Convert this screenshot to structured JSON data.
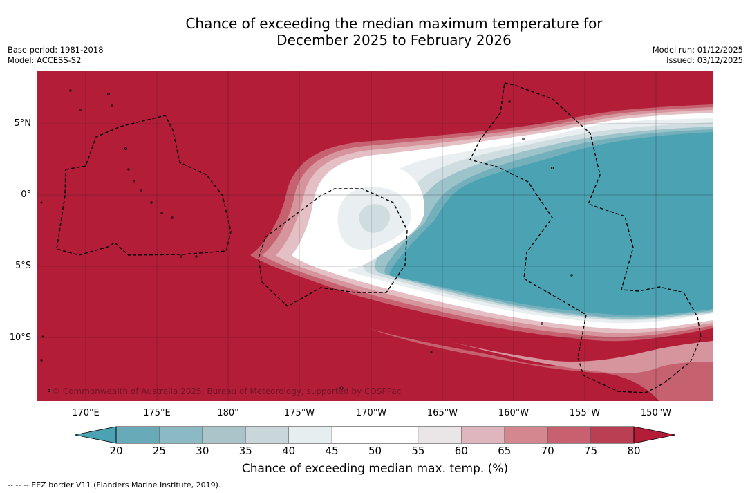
{
  "title": {
    "line1": "Chance of exceeding the median maximum temperature for",
    "line2": "December 2025 to February 2026"
  },
  "meta_left": {
    "base_period": "Base period: 1981-2018",
    "model": "Model: ACCESS-S2"
  },
  "meta_right": {
    "model_run": "Model run: 01/12/2025",
    "issued": "Issued: 03/12/2025"
  },
  "copyright": "© Commonwealth of Australia 2025, Bureau of Meteorology, supported by COSPPac",
  "longitude_labels": [
    "170°E",
    "175°E",
    "180°",
    "175°W",
    "170°W",
    "165°W",
    "160°W",
    "155°W",
    "150°W"
  ],
  "latitude_labels": [
    "5°N",
    "0°",
    "5°S",
    "10°S"
  ],
  "colorbar": {
    "ticks": [
      "20",
      "25",
      "30",
      "35",
      "40",
      "45",
      "50",
      "55",
      "60",
      "65",
      "70",
      "75",
      "80"
    ],
    "colors": [
      "#69aab8",
      "#8bb9c4",
      "#a9c5ca",
      "#c9d6da",
      "#e7eef0",
      "#ffffff",
      "#ffffff",
      "#eae6e7",
      "#dfb6bd",
      "#d4878f",
      "#c76170",
      "#bb3f53"
    ],
    "low_color": "#4aa2b3",
    "high_color": "#b31d38",
    "label": "Chance of exceeding median max. temp. (%)"
  },
  "legend_footer": "--  --  -- EEZ border V11 (Flanders Marine Institute, 2019).",
  "map_colors": {
    "warm": "#b31d38",
    "cool": "#4aa2b3",
    "pink1": "#c66170",
    "pink2": "#d6959d",
    "pink3": "#e4c0c5",
    "grey1": "#e9eef0",
    "grey2": "#cfdde1",
    "teal1": "#9cc3ca",
    "teal2": "#73b0bc"
  }
}
